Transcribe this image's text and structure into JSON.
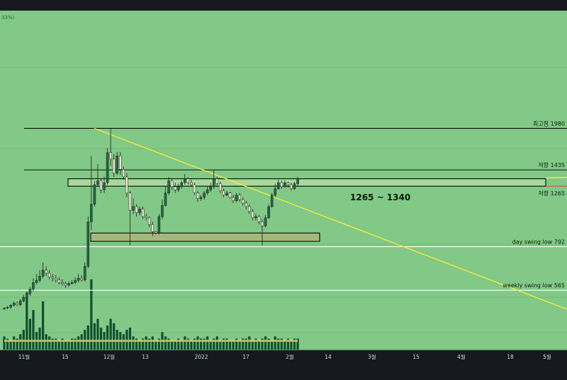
{
  "header": {
    "corner_label": "33%)"
  },
  "colors": {
    "plot_bg": "#82c886",
    "frame_bg": "#15181f",
    "trendline": "#f0ec3c",
    "candle_up": "#1f6b44",
    "candle_down": "#f2eeda",
    "volume": "#0f4f2e",
    "volume_ma": "#d7c96a",
    "zone_fill": "#a9d89c",
    "zone_low_fill": "#a3b87a",
    "resistance_marker": "#d8564d",
    "axis_text": "#cfd4dc"
  },
  "chart_data": {
    "type": "candlestick",
    "instrument_note": "log price scale, candlestick with volume",
    "ylim": [
      400,
      2300
    ],
    "y_scale": "log",
    "x_ticks": [
      "11월",
      "15",
      "12월",
      "13",
      "2022",
      "17",
      "2월",
      "14",
      "3월",
      "15",
      "4월",
      "18",
      "5월"
    ],
    "horizontal_levels": [
      {
        "label": "최고점 1980",
        "value": 1980,
        "color": "#111111"
      },
      {
        "label": "저항 1435",
        "value": 1435,
        "color": "#111111"
      },
      {
        "label": "저항 1265",
        "value": 1265,
        "color": "#111111"
      },
      {
        "label": "day swing low 792",
        "value": 792,
        "color": "#ffffff"
      },
      {
        "label": "weekly swing low 565",
        "value": 565,
        "color": "#ffffff"
      }
    ],
    "zones": [
      {
        "label": "1265 ~ 1340",
        "low": 1265,
        "high": 1340
      },
      {
        "label": "",
        "low": 825,
        "high": 880
      }
    ],
    "trendline": {
      "from": {
        "date": "2021-11-22",
        "price": 1980
      },
      "to": {
        "date": "2022-05-06",
        "price": 420
      }
    },
    "candles": [
      [
        492,
        492,
        485,
        495
      ],
      [
        492,
        495,
        488,
        500
      ],
      [
        495,
        503,
        490,
        508
      ],
      [
        503,
        511,
        498,
        518
      ],
      [
        511,
        505,
        500,
        518
      ],
      [
        505,
        520,
        500,
        528
      ],
      [
        520,
        535,
        515,
        545
      ],
      [
        535,
        550,
        525,
        560
      ],
      [
        550,
        570,
        540,
        580
      ],
      [
        570,
        600,
        560,
        620
      ],
      [
        600,
        610,
        590,
        640
      ],
      [
        610,
        630,
        600,
        660
      ],
      [
        630,
        660,
        620,
        700
      ],
      [
        660,
        645,
        630,
        680
      ],
      [
        645,
        625,
        615,
        660
      ],
      [
        625,
        620,
        605,
        640
      ],
      [
        620,
        612,
        600,
        635
      ],
      [
        612,
        600,
        590,
        625
      ],
      [
        600,
        595,
        585,
        615
      ],
      [
        595,
        588,
        575,
        605
      ],
      [
        588,
        595,
        580,
        605
      ],
      [
        595,
        600,
        590,
        612
      ],
      [
        600,
        610,
        592,
        625
      ],
      [
        610,
        620,
        600,
        640
      ],
      [
        620,
        612,
        605,
        635
      ],
      [
        612,
        680,
        605,
        700
      ],
      [
        680,
        960,
        670,
        1000
      ],
      [
        960,
        1100,
        900,
        1600
      ],
      [
        1100,
        1280,
        1080,
        1320
      ],
      [
        1280,
        1320,
        1260,
        1500
      ],
      [
        1320,
        1230,
        1200,
        1340
      ],
      [
        1230,
        1300,
        1200,
        1360
      ],
      [
        1300,
        1640,
        1280,
        1700
      ],
      [
        1640,
        1560,
        1480,
        1980
      ],
      [
        1560,
        1400,
        1360,
        1620
      ],
      [
        1400,
        1600,
        1380,
        1650
      ],
      [
        1600,
        1440,
        1380,
        1650
      ],
      [
        1440,
        1360,
        1330,
        1470
      ],
      [
        1360,
        1200,
        1160,
        1400
      ],
      [
        1200,
        1050,
        800,
        1220
      ],
      [
        1050,
        1080,
        1020,
        1150
      ],
      [
        1080,
        1030,
        1000,
        1100
      ],
      [
        1030,
        1060,
        1010,
        1080
      ],
      [
        1060,
        1000,
        980,
        1080
      ],
      [
        1000,
        990,
        970,
        1020
      ],
      [
        990,
        940,
        920,
        1000
      ],
      [
        940,
        890,
        860,
        960
      ],
      [
        890,
        880,
        870,
        895
      ],
      [
        880,
        1000,
        870,
        1020
      ],
      [
        1000,
        1090,
        980,
        1140
      ],
      [
        1090,
        1200,
        1080,
        1260
      ],
      [
        1200,
        1320,
        1180,
        1360
      ],
      [
        1320,
        1260,
        1230,
        1340
      ],
      [
        1260,
        1230,
        1200,
        1300
      ],
      [
        1230,
        1260,
        1210,
        1290
      ],
      [
        1260,
        1300,
        1240,
        1320
      ],
      [
        1300,
        1340,
        1280,
        1390
      ],
      [
        1340,
        1300,
        1280,
        1360
      ],
      [
        1300,
        1280,
        1260,
        1330
      ],
      [
        1280,
        1200,
        1180,
        1300
      ],
      [
        1200,
        1150,
        1120,
        1220
      ],
      [
        1150,
        1160,
        1130,
        1180
      ],
      [
        1160,
        1200,
        1140,
        1220
      ],
      [
        1200,
        1230,
        1180,
        1260
      ],
      [
        1230,
        1260,
        1210,
        1300
      ],
      [
        1260,
        1340,
        1240,
        1440
      ],
      [
        1340,
        1290,
        1260,
        1360
      ],
      [
        1290,
        1220,
        1200,
        1310
      ],
      [
        1220,
        1180,
        1160,
        1240
      ],
      [
        1180,
        1200,
        1170,
        1220
      ],
      [
        1200,
        1160,
        1150,
        1210
      ],
      [
        1160,
        1130,
        1110,
        1180
      ],
      [
        1130,
        1180,
        1120,
        1200
      ],
      [
        1180,
        1140,
        1120,
        1200
      ],
      [
        1140,
        1110,
        1090,
        1160
      ],
      [
        1110,
        1080,
        1060,
        1130
      ],
      [
        1080,
        1040,
        1020,
        1100
      ],
      [
        1040,
        990,
        970,
        1060
      ],
      [
        990,
        1000,
        970,
        1020
      ],
      [
        1000,
        960,
        940,
        1010
      ],
      [
        960,
        930,
        800,
        980
      ],
      [
        930,
        990,
        920,
        1010
      ],
      [
        990,
        1080,
        980,
        1100
      ],
      [
        1080,
        1180,
        1070,
        1200
      ],
      [
        1180,
        1240,
        1160,
        1290
      ],
      [
        1240,
        1300,
        1230,
        1330
      ],
      [
        1300,
        1260,
        1240,
        1320
      ],
      [
        1260,
        1300,
        1250,
        1320
      ],
      [
        1300,
        1280,
        1250,
        1310
      ],
      [
        1280,
        1240,
        1220,
        1300
      ],
      [
        1240,
        1290,
        1230,
        1310
      ],
      [
        1290,
        1340,
        1270,
        1360
      ]
    ],
    "volume": [
      6,
      5,
      4,
      6,
      5,
      7,
      9,
      26,
      14,
      18,
      8,
      10,
      22,
      7,
      6,
      5,
      5,
      4,
      5,
      4,
      4,
      5,
      5,
      6,
      7,
      9,
      11,
      32,
      12,
      14,
      10,
      8,
      11,
      14,
      12,
      9,
      8,
      7,
      9,
      10,
      6,
      5,
      4,
      5,
      6,
      5,
      6,
      4,
      5,
      8,
      6,
      5,
      4,
      4,
      5,
      4,
      6,
      5,
      4,
      5,
      6,
      5,
      5,
      6,
      4,
      5,
      6,
      4,
      5,
      5,
      4,
      4,
      5,
      4,
      5,
      5,
      6,
      4,
      5,
      4,
      5,
      6,
      5,
      4,
      6,
      5,
      5,
      4,
      5,
      4,
      5,
      5
    ],
    "volume_ma": 4
  }
}
